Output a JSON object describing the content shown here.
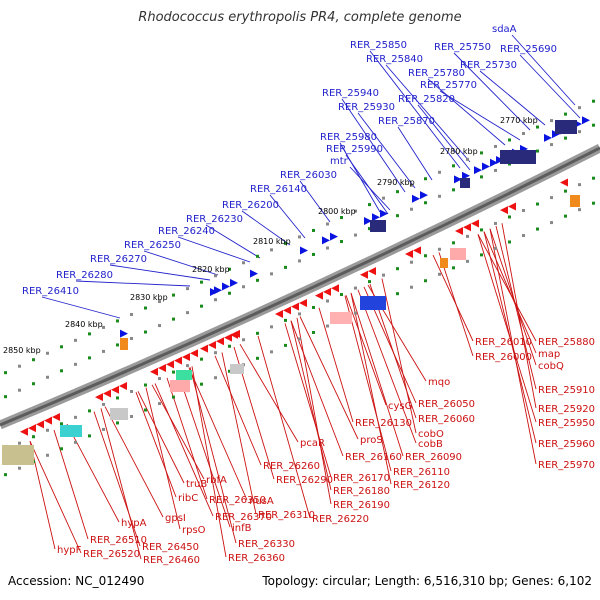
{
  "title": "Rhodococcus erythropolis PR4, complete genome",
  "footer": {
    "accession": "Accession: NC_012490",
    "summary": "Topology: circular; Length: 6,516,310 bp; Genes: 6,102"
  },
  "colors": {
    "forward_gene": "#0a14e0",
    "reverse_gene": "#ee1111",
    "forward_label": "#2222cc",
    "reverse_label": "#cc1111",
    "backbone": "#777777",
    "tick_green": "#1a8a1a"
  },
  "kbp_ticks": [
    "2770 kbp",
    "2780 kbp",
    "2790 kbp",
    "2800 kbp",
    "2810 kbp",
    "2820 kbp",
    "2830 kbp",
    "2840 kbp",
    "2850 kbp"
  ],
  "forward_labels": [
    "sdaA",
    "RER_25690",
    "RER_25730",
    "RER_25750",
    "RER_25770",
    "RER_25780",
    "RER_25840",
    "RER_25850",
    "RER_25820",
    "RER_25870",
    "RER_25930",
    "RER_25940",
    "mtr",
    "RER_25980",
    "RER_25990",
    "RER_26030",
    "RER_26140",
    "RER_26200",
    "RER_26230",
    "RER_26240",
    "RER_26250",
    "RER_26270",
    "RER_26280",
    "RER_26410"
  ],
  "reverse_labels": [
    "RER_25880",
    "map",
    "cobQ",
    "RER_25910",
    "RER_25920",
    "RER_25950",
    "RER_25960",
    "RER_25970",
    "RER_26010",
    "RER_26000",
    "mqo",
    "RER_26050",
    "RER_26060",
    "cysG",
    "cobO",
    "cobB",
    "RER_26090",
    "RER_26110",
    "RER_26120",
    "RER_26130",
    "proS",
    "RER_26160",
    "RER_26170",
    "RER_26180",
    "RER_26190",
    "pcaR",
    "RER_26220",
    "RER_26260",
    "RER_26290",
    "RER_26310",
    "nusA",
    "infB",
    "RER_26330",
    "RER_26350",
    "RER_26360",
    "RER_26370",
    "rbfA",
    "truB",
    "ribC",
    "rpsO",
    "gpsI",
    "hypA",
    "RER_26450",
    "RER_26460",
    "RER_26510",
    "RER_26520",
    "hypF"
  ]
}
